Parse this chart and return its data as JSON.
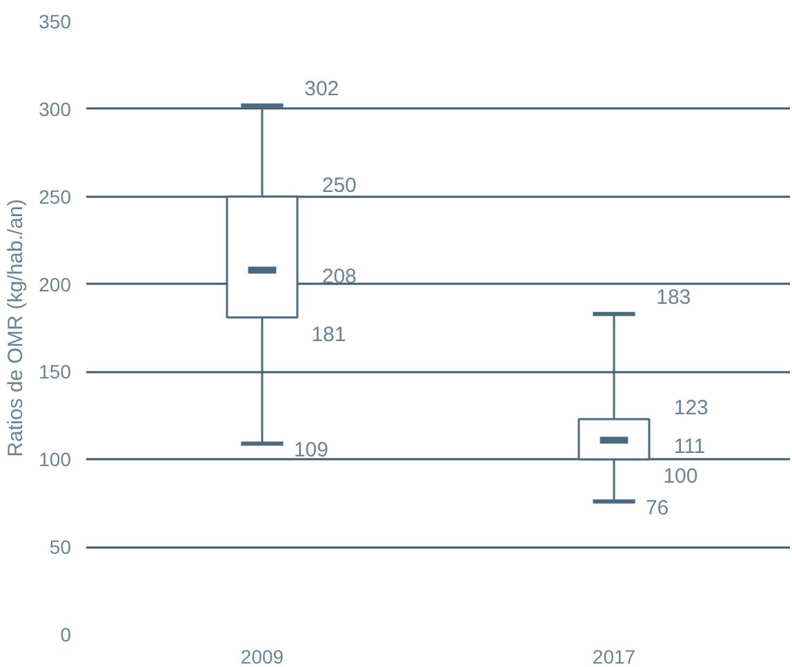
{
  "chart_data": {
    "type": "box",
    "ylabel": "Ratios de OMR (kg/hab./an)",
    "categories": [
      "2009",
      "2017"
    ],
    "boxes": [
      {
        "low": 109,
        "q1": 181,
        "median": 208,
        "q3": 250,
        "high": 302
      },
      {
        "low": 76,
        "q1": 100,
        "median": 111,
        "q3": 123,
        "high": 183
      }
    ],
    "color": "#4a6a80",
    "ylim": [
      0,
      350
    ],
    "yticks": [
      0,
      50,
      100,
      150,
      200,
      250,
      300,
      350
    ],
    "grid": "y",
    "annotations": [
      {
        "text": "302",
        "x": "2009",
        "y": 302
      },
      {
        "text": "250",
        "x": "2009",
        "y": 250
      },
      {
        "text": "208",
        "x": "2009",
        "y": 208
      },
      {
        "text": "181",
        "x": "2009",
        "y": 181
      },
      {
        "text": "109",
        "x": "2009",
        "y": 109
      },
      {
        "text": "183",
        "x": "2017",
        "y": 183
      },
      {
        "text": "123",
        "x": "2017",
        "y": 123
      },
      {
        "text": "111",
        "x": "2017",
        "y": 111
      },
      {
        "text": "100",
        "x": "2017",
        "y": 100
      },
      {
        "text": "76",
        "x": "2017",
        "y": 76
      }
    ]
  }
}
